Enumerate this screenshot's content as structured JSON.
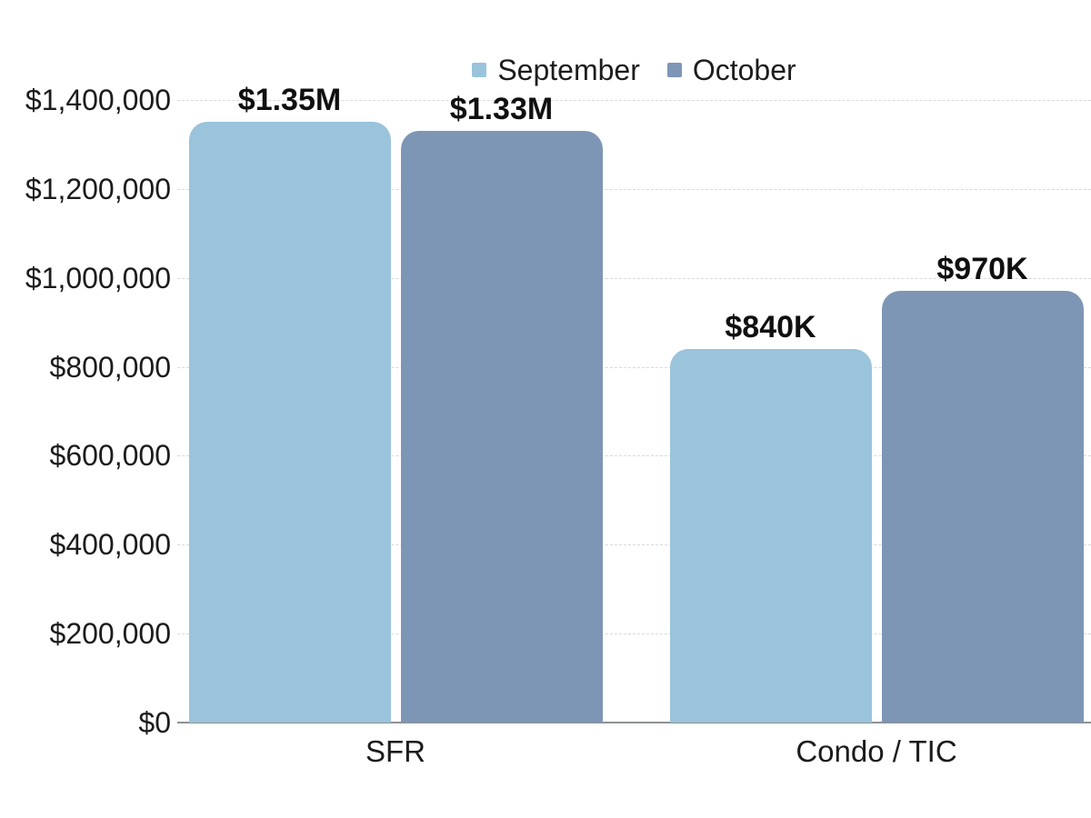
{
  "chart": {
    "legend": [
      {
        "label": "September",
        "color": "#9AC4DB"
      },
      {
        "label": "October",
        "color": "#7E96B5"
      }
    ]
  },
  "chart_data": {
    "type": "bar",
    "title": "",
    "xlabel": "",
    "ylabel": "",
    "categories": [
      "SFR",
      "Condo / TIC"
    ],
    "series": [
      {
        "name": "September",
        "color": "#9AC4DB",
        "values": [
          1350000,
          840000
        ],
        "data_labels": [
          "$1.35M",
          "$840K"
        ]
      },
      {
        "name": "October",
        "color": "#7E96B5",
        "values": [
          1330000,
          970000
        ],
        "data_labels": [
          "$1.33M",
          "$970K"
        ]
      }
    ],
    "ylim": [
      0,
      1400000
    ],
    "ytick_interval": 200000,
    "ytick_values": [
      0,
      200000,
      400000,
      600000,
      800000,
      1000000,
      1200000,
      1400000
    ],
    "ytick_labels": [
      "$0",
      "$200,000",
      "$400,000",
      "$600,000",
      "$800,000",
      "$1,000,000",
      "$1,200,000",
      "$1,400,000"
    ],
    "grid": true,
    "gridline_color": "#d8dbdb",
    "baseline_color": "#8d9192",
    "legend_position": "top",
    "background_color": "#ffffff",
    "text_color": "#1a1a1a"
  }
}
